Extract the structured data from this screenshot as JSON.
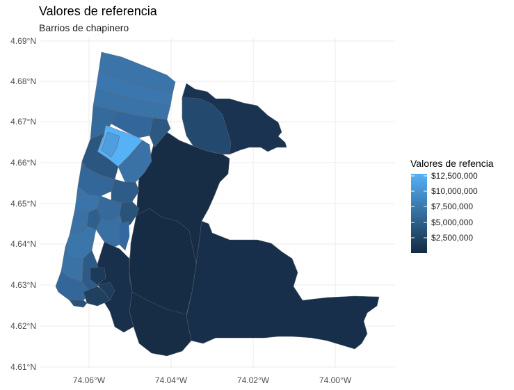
{
  "title": "Valores de referencia",
  "subtitle": "Barrios de chapinero",
  "axes": {
    "x_ticks": [
      "74.06°W",
      "74.04°W",
      "74.02°W",
      "74.00°W"
    ],
    "y_ticks": [
      "4.69°N",
      "4.68°N",
      "4.67°N",
      "4.66°N",
      "4.65°N",
      "4.64°N",
      "4.63°N",
      "4.62°N",
      "4.61°N"
    ]
  },
  "legend": {
    "title": "Valores de refencia",
    "labels": [
      "$12,500,000",
      "$10,000,000",
      "$7,500,000",
      "$5,000,000",
      "$2,500,000"
    ]
  },
  "colors": {
    "low": "#132b43",
    "high": "#56b1f7",
    "background": "#ffffff",
    "grid": "#ebebeb"
  }
}
